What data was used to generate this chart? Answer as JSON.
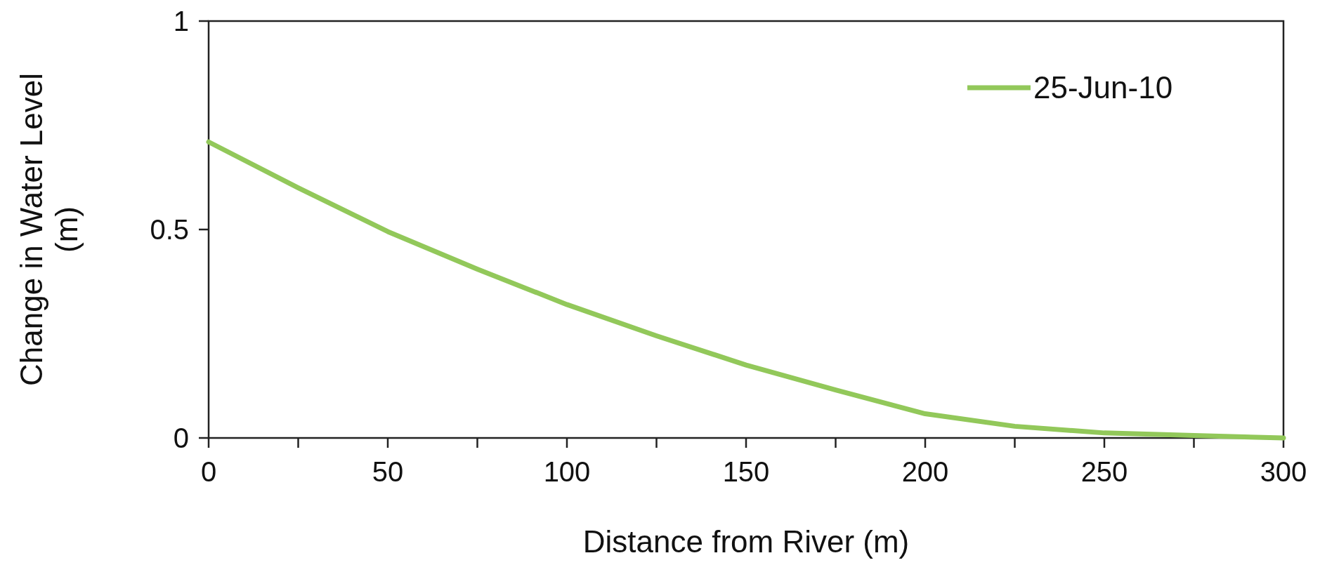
{
  "chart_data": {
    "type": "line",
    "xlabel": "Distance from River (m)",
    "ylabel": "Change in Water Level (m)",
    "x": [
      0,
      25,
      50,
      75,
      100,
      125,
      150,
      175,
      200,
      225,
      250,
      275,
      300
    ],
    "series": [
      {
        "name": "25-Jun-10",
        "color": "#92c85a",
        "values": [
          0.71,
          0.6,
          0.495,
          0.405,
          0.32,
          0.245,
          0.175,
          0.115,
          0.058,
          0.028,
          0.012,
          0.006,
          0
        ]
      }
    ],
    "xlim": [
      0,
      300
    ],
    "xticks": [
      0,
      {
        "value": 25,
        "label": null
      },
      50,
      {
        "value": 75,
        "label": null
      },
      100,
      {
        "value": 125,
        "label": null
      },
      150,
      {
        "value": 175,
        "label": null
      },
      200,
      {
        "value": 225,
        "label": null
      },
      250,
      {
        "value": 275,
        "label": null
      },
      300
    ],
    "ylim": [
      0,
      1
    ],
    "yticks": [
      0,
      0.5,
      1
    ],
    "grid": false,
    "legend": "top right",
    "marker": "none",
    "line_style": "solid"
  }
}
